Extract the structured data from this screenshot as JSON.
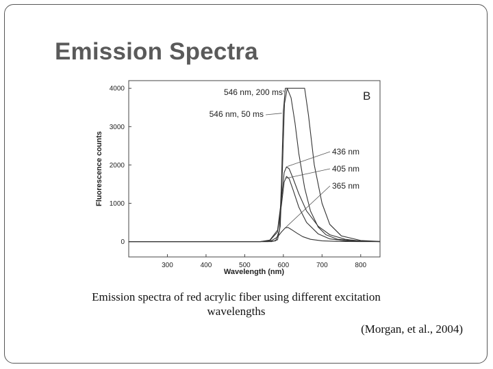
{
  "slide": {
    "title": "Emission Spectra",
    "caption": "Emission spectra of red acrylic fiber using different excitation wavelengths",
    "citation": "(Morgan, et al., 2004)"
  },
  "chart_data": {
    "type": "line",
    "panel_label": "B",
    "xlabel": "Wavelength (nm)",
    "ylabel": "Fluorescence counts",
    "xlim": [
      200,
      850
    ],
    "ylim": [
      -400,
      4200
    ],
    "xticks": [
      300,
      400,
      500,
      600,
      700,
      800
    ],
    "yticks": [
      0,
      1000,
      2000,
      3000,
      4000
    ],
    "grid": false,
    "series": [
      {
        "name": "546 nm, 200 ms",
        "x": [
          200,
          560,
          580,
          590,
          595,
          600,
          605,
          620,
          640,
          655,
          665,
          680,
          700,
          720,
          750,
          800,
          850
        ],
        "y": [
          0,
          0,
          20,
          300,
          1500,
          3400,
          4000,
          4000,
          4000,
          4000,
          3300,
          2000,
          1000,
          450,
          150,
          30,
          5
        ]
      },
      {
        "name": "546 nm, 50 ms",
        "x": [
          200,
          570,
          585,
          592,
          598,
          603,
          610,
          620,
          630,
          640,
          655,
          670,
          690,
          710,
          740,
          800,
          850
        ],
        "y": [
          0,
          0,
          50,
          400,
          2000,
          3600,
          4000,
          3750,
          3100,
          2300,
          1400,
          800,
          380,
          180,
          60,
          10,
          0
        ]
      },
      {
        "name": "436 nm",
        "x": [
          200,
          540,
          565,
          585,
          595,
          602,
          608,
          615,
          625,
          640,
          660,
          690,
          720,
          760,
          800,
          850
        ],
        "y": [
          0,
          0,
          40,
          300,
          1100,
          1800,
          1950,
          1900,
          1650,
          1250,
          800,
          400,
          180,
          60,
          15,
          0
        ]
      },
      {
        "name": "405 nm",
        "x": [
          200,
          540,
          565,
          585,
          595,
          602,
          608,
          615,
          625,
          640,
          660,
          690,
          720,
          760,
          800,
          850
        ],
        "y": [
          0,
          0,
          30,
          250,
          950,
          1550,
          1700,
          1640,
          1350,
          900,
          500,
          200,
          70,
          20,
          5,
          0
        ]
      },
      {
        "name": "365 nm",
        "x": [
          200,
          540,
          570,
          585,
          595,
          605,
          612,
          620,
          635,
          650,
          670,
          700,
          740,
          800,
          850
        ],
        "y": [
          0,
          0,
          30,
          120,
          250,
          360,
          370,
          320,
          220,
          130,
          60,
          20,
          5,
          0,
          0
        ]
      }
    ],
    "annotations": [
      {
        "text": "546 nm, 200 ms",
        "series": 0,
        "x": 600,
        "y": 3950
      },
      {
        "text": "546 nm, 50 ms",
        "series": 1,
        "x": 596,
        "y": 3350
      },
      {
        "text": "436 nm",
        "series": 2,
        "x": 610,
        "y": 1960
      },
      {
        "text": "405 nm",
        "series": 3,
        "x": 606,
        "y": 1650
      },
      {
        "text": "365 nm",
        "series": 4,
        "x": 606,
        "y": 370
      }
    ]
  }
}
